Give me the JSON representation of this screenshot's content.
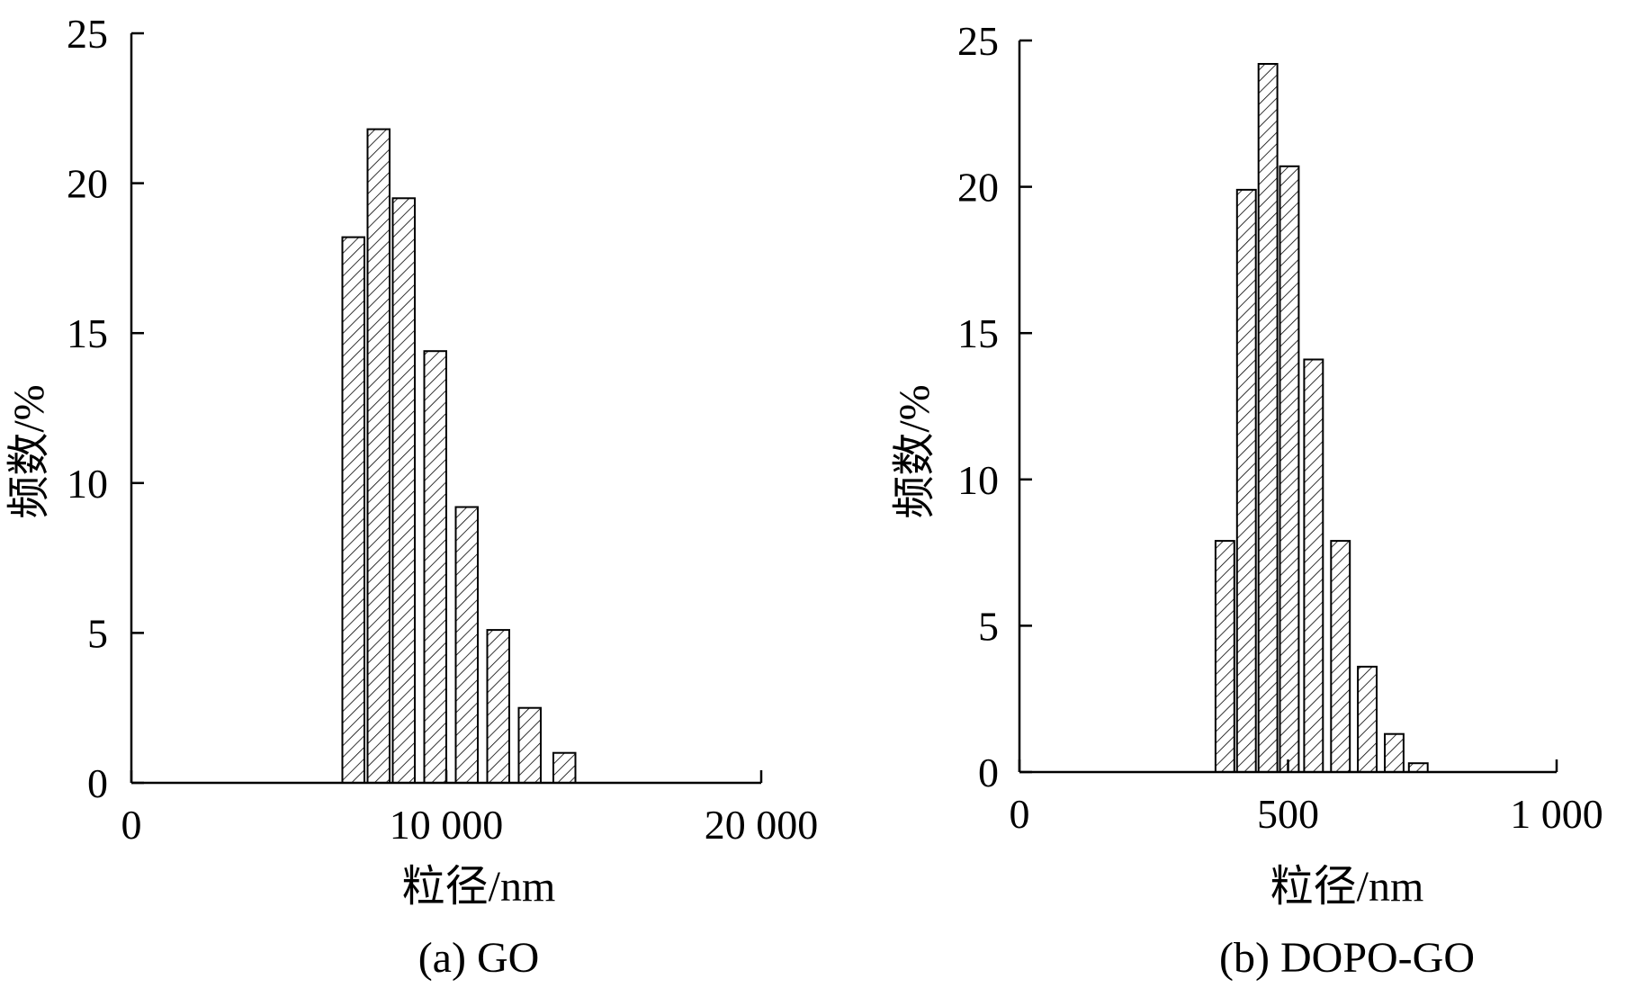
{
  "chart_data": [
    {
      "type": "bar",
      "caption": "(a) GO",
      "xlabel": "粒径/nm",
      "ylabel": "频数/%",
      "xlim": [
        0,
        20000
      ],
      "ylim": [
        0,
        25
      ],
      "xticks": [
        0,
        10000,
        20000
      ],
      "xtick_labels": [
        "0",
        "10 000",
        "20 000"
      ],
      "yticks": [
        0,
        5,
        10,
        15,
        20,
        25
      ],
      "ytick_labels": [
        "0",
        "5",
        "10",
        "15",
        "20",
        "25"
      ],
      "bar_width": 700,
      "x": [
        6700,
        7500,
        8300,
        9300,
        10300,
        11300,
        12300,
        13400
      ],
      "values": [
        18.2,
        21.8,
        19.5,
        14.4,
        9.2,
        5.1,
        2.5,
        1.0
      ],
      "grid": false,
      "pattern": "diagonal-hatch"
    },
    {
      "type": "bar",
      "caption": "(b) DOPO-GO",
      "xlabel": "粒径/nm",
      "ylabel": "频数/%",
      "xlim": [
        0,
        1000
      ],
      "ylim": [
        0,
        25
      ],
      "xticks": [
        0,
        500,
        1000
      ],
      "xtick_labels": [
        "0",
        "500",
        "1 000"
      ],
      "yticks": [
        0,
        5,
        10,
        15,
        20,
        25
      ],
      "ytick_labels": [
        "0",
        "5",
        "10",
        "15",
        "20",
        "25"
      ],
      "bar_width": 35,
      "x": [
        365,
        405,
        445,
        485,
        530,
        580,
        630,
        680,
        725
      ],
      "values": [
        7.9,
        19.9,
        24.2,
        20.7,
        14.1,
        7.9,
        3.6,
        1.3,
        0.3
      ],
      "grid": false,
      "pattern": "diagonal-hatch"
    }
  ]
}
